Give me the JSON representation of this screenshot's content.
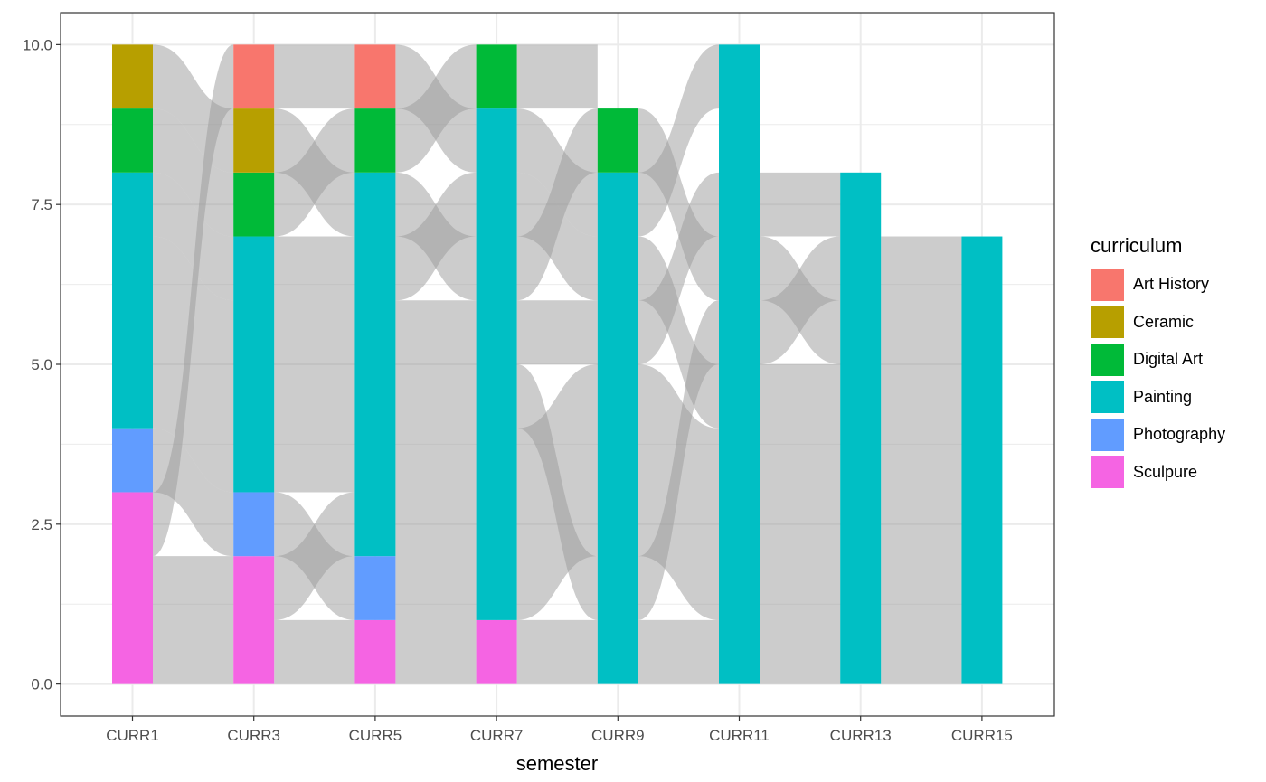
{
  "chart_data": {
    "type": "alluvial",
    "title": "",
    "xlabel": "semester",
    "ylabel": "",
    "ylim": [
      -0.5,
      10.5
    ],
    "yticks": [
      "0.0",
      "2.5",
      "5.0",
      "7.5",
      "10.0"
    ],
    "ytick_values": [
      0,
      2.5,
      5,
      7.5,
      10
    ],
    "categories": [
      "CURR1",
      "CURR3",
      "CURR5",
      "CURR7",
      "CURR9",
      "CURR11",
      "CURR13",
      "CURR15"
    ],
    "grid": true,
    "legend_position": "right",
    "legend": {
      "title": "curriculum",
      "entries": [
        {
          "label": "Art History",
          "color": "#F8766D"
        },
        {
          "label": "Ceramic",
          "color": "#B79F00"
        },
        {
          "label": "Digital Art",
          "color": "#00BA38"
        },
        {
          "label": "Painting",
          "color": "#00BFC4"
        },
        {
          "label": "Photography",
          "color": "#619CFF"
        },
        {
          "label": "Sculpure",
          "color": "#F564E3"
        }
      ]
    },
    "stacks": [
      [
        {
          "c": "Sculpure",
          "y0": 0,
          "y1": 3
        },
        {
          "c": "Photography",
          "y0": 3,
          "y1": 4
        },
        {
          "c": "Painting",
          "y0": 4,
          "y1": 8
        },
        {
          "c": "Digital Art",
          "y0": 8,
          "y1": 9
        },
        {
          "c": "Ceramic",
          "y0": 9,
          "y1": 10
        }
      ],
      [
        {
          "c": "Sculpure",
          "y0": 0,
          "y1": 2
        },
        {
          "c": "Photography",
          "y0": 2,
          "y1": 3
        },
        {
          "c": "Painting",
          "y0": 3,
          "y1": 7
        },
        {
          "c": "Digital Art",
          "y0": 7,
          "y1": 8
        },
        {
          "c": "Ceramic",
          "y0": 8,
          "y1": 9
        },
        {
          "c": "Art History",
          "y0": 9,
          "y1": 10
        }
      ],
      [
        {
          "c": "Sculpure",
          "y0": 0,
          "y1": 1
        },
        {
          "c": "Photography",
          "y0": 1,
          "y1": 2
        },
        {
          "c": "Painting",
          "y0": 2,
          "y1": 8
        },
        {
          "c": "Digital Art",
          "y0": 8,
          "y1": 9
        },
        {
          "c": "Art History",
          "y0": 9,
          "y1": 10
        }
      ],
      [
        {
          "c": "Sculpure",
          "y0": 0,
          "y1": 1
        },
        {
          "c": "Painting",
          "y0": 1,
          "y1": 9
        },
        {
          "c": "Digital Art",
          "y0": 9,
          "y1": 10
        }
      ],
      [
        {
          "c": "Painting",
          "y0": 0,
          "y1": 8
        },
        {
          "c": "Digital Art",
          "y0": 8,
          "y1": 9
        }
      ],
      [
        {
          "c": "Painting",
          "y0": 0,
          "y1": 10
        }
      ],
      [
        {
          "c": "Painting",
          "y0": 0,
          "y1": 8
        }
      ],
      [
        {
          "c": "Painting",
          "y0": 0,
          "y1": 7
        }
      ]
    ],
    "flows": [
      [
        [
          0,
          2,
          0,
          2
        ],
        [
          2,
          3,
          9,
          10
        ],
        [
          3,
          4,
          2,
          3
        ],
        [
          4,
          7,
          3,
          6
        ],
        [
          7,
          8,
          6,
          7
        ],
        [
          8,
          9,
          7,
          8
        ],
        [
          9,
          10,
          8,
          9
        ]
      ],
      [
        [
          0,
          1,
          0,
          1
        ],
        [
          1,
          2,
          2,
          3
        ],
        [
          2,
          3,
          1,
          2
        ],
        [
          3,
          7,
          3,
          7
        ],
        [
          7,
          8,
          8,
          9
        ],
        [
          8,
          9,
          7,
          8
        ],
        [
          9,
          10,
          9,
          10
        ]
      ],
      [
        [
          0,
          6,
          0,
          6
        ],
        [
          6,
          7,
          7,
          8
        ],
        [
          7,
          8,
          6,
          7
        ],
        [
          8,
          9,
          9,
          10
        ],
        [
          9,
          10,
          8,
          9
        ]
      ],
      [
        [
          0,
          1,
          0,
          1
        ],
        [
          1,
          4,
          2,
          5
        ],
        [
          4,
          5,
          1,
          2
        ],
        [
          5,
          6,
          5,
          6
        ],
        [
          6,
          7,
          8,
          9
        ],
        [
          7,
          8,
          6,
          7
        ],
        [
          8,
          9,
          7,
          8
        ],
        [
          9,
          10,
          9,
          10
        ]
      ],
      [
        [
          0,
          1,
          0,
          1
        ],
        [
          1,
          2,
          5,
          6
        ],
        [
          2,
          5,
          1,
          4
        ],
        [
          5,
          6,
          7,
          8
        ],
        [
          6,
          7,
          4,
          5
        ],
        [
          7,
          8,
          9,
          10
        ],
        [
          8,
          9,
          6,
          7
        ]
      ],
      [
        [
          0,
          5,
          0,
          5
        ],
        [
          5,
          6,
          6,
          7
        ],
        [
          6,
          7,
          5,
          6
        ],
        [
          7,
          8,
          7,
          8
        ]
      ],
      [
        [
          0,
          7,
          0,
          7
        ]
      ]
    ]
  }
}
